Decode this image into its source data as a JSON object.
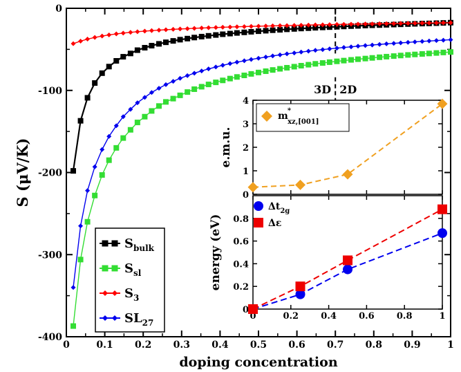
{
  "chart_data": [
    {
      "type": "line",
      "xlabel": "doping concentration",
      "ylabel": "S (μV/K)",
      "xlim": [
        0,
        1
      ],
      "ylim": [
        -400,
        0
      ],
      "xticks": [
        "0",
        "0.1",
        "0.2",
        "0.3",
        "0.4",
        "0.5",
        "0.6",
        "0.7",
        "0.8",
        "0.9",
        "1"
      ],
      "yticks": [
        "0",
        "-100",
        "-200",
        "-300",
        "-400"
      ],
      "grid": false,
      "legend_position": "bottom-left",
      "annotations": [
        {
          "text": "3D",
          "x": 0.7,
          "y": -100
        },
        {
          "text": "2D",
          "x": 0.7,
          "y": -100
        },
        {
          "type": "dashed-vertical-line",
          "x": 0.7
        }
      ],
      "series": [
        {
          "name": "S",
          "subscript": "bulk",
          "color": "#000000",
          "marker": "square",
          "x": [
            0.018,
            0.037,
            0.055,
            0.074,
            0.093,
            0.111,
            0.13,
            0.148,
            0.167,
            0.185,
            0.204,
            0.222,
            0.241,
            0.259,
            0.278,
            0.296,
            0.315,
            0.333,
            0.352,
            0.37,
            0.389,
            0.407,
            0.426,
            0.444,
            0.463,
            0.481,
            0.5,
            0.519,
            0.537,
            0.556,
            0.574,
            0.593,
            0.611,
            0.63,
            0.648,
            0.667,
            0.685,
            0.704,
            0.722,
            0.741,
            0.759,
            0.778,
            0.796,
            0.815,
            0.833,
            0.852,
            0.87,
            0.889,
            0.907,
            0.926,
            0.944,
            0.963,
            0.981,
            1.0
          ],
          "y": [
            -198,
            -137,
            -109,
            -91,
            -79,
            -71,
            -64,
            -59,
            -55,
            -51,
            -48,
            -45.5,
            -43.3,
            -41.4,
            -39.7,
            -38.2,
            -36.9,
            -35.6,
            -34.5,
            -33.5,
            -32.5,
            -31.6,
            -30.8,
            -30.0,
            -29.3,
            -28.6,
            -27.9,
            -27.3,
            -26.7,
            -26.2,
            -25.6,
            -25.1,
            -24.6,
            -24.2,
            -23.7,
            -23.3,
            -22.9,
            -22.5,
            -22.1,
            -21.7,
            -21.4,
            -21.0,
            -20.7,
            -20.4,
            -20.1,
            -19.8,
            -19.5,
            -19.2,
            -18.9,
            -18.6,
            -18.4,
            -18.1,
            -17.8,
            -17.5
          ]
        },
        {
          "name": "S",
          "subscript": "sl",
          "color": "#33dd33",
          "marker": "square",
          "x": [
            0.018,
            0.037,
            0.055,
            0.074,
            0.093,
            0.111,
            0.13,
            0.148,
            0.167,
            0.185,
            0.204,
            0.222,
            0.241,
            0.259,
            0.278,
            0.296,
            0.315,
            0.333,
            0.352,
            0.37,
            0.389,
            0.407,
            0.426,
            0.444,
            0.463,
            0.481,
            0.5,
            0.519,
            0.537,
            0.556,
            0.574,
            0.593,
            0.611,
            0.63,
            0.648,
            0.667,
            0.685,
            0.704,
            0.722,
            0.741,
            0.759,
            0.778,
            0.796,
            0.815,
            0.833,
            0.852,
            0.87,
            0.889,
            0.907,
            0.926,
            0.944,
            0.963,
            0.981,
            1.0
          ],
          "y": [
            -387,
            -306,
            -260,
            -228,
            -203,
            -185,
            -170,
            -158,
            -148,
            -139,
            -132,
            -125,
            -119,
            -114,
            -110,
            -106,
            -102,
            -98.5,
            -95.5,
            -92.7,
            -90.2,
            -87.8,
            -85.6,
            -83.6,
            -81.7,
            -79.9,
            -78.2,
            -76.6,
            -75.1,
            -73.7,
            -72.4,
            -71.1,
            -69.9,
            -68.7,
            -67.6,
            -66.6,
            -65.6,
            -64.6,
            -63.7,
            -62.8,
            -62.0,
            -61.2,
            -60.4,
            -59.6,
            -58.9,
            -58.2,
            -57.5,
            -56.8,
            -56.2,
            -55.6,
            -55.0,
            -54.4,
            -53.8,
            -53.2
          ]
        },
        {
          "name": "S",
          "subscript": "3",
          "color": "#ff0000",
          "marker": "diamond",
          "x": [
            0.018,
            0.037,
            0.055,
            0.074,
            0.093,
            0.111,
            0.13,
            0.148,
            0.167,
            0.185,
            0.204,
            0.222,
            0.241,
            0.259,
            0.278,
            0.296,
            0.315,
            0.333,
            0.352,
            0.37,
            0.389,
            0.407,
            0.426,
            0.444,
            0.463,
            0.481,
            0.5,
            0.519,
            0.537,
            0.556,
            0.574,
            0.593,
            0.611,
            0.63,
            0.648,
            0.667,
            0.685,
            0.704,
            0.722,
            0.741,
            0.759,
            0.778,
            0.796,
            0.815,
            0.833,
            0.852,
            0.87,
            0.889,
            0.907,
            0.926,
            0.944,
            0.963,
            0.981,
            1.0
          ],
          "y": [
            -43,
            -40,
            -37.5,
            -35.5,
            -33.8,
            -32.4,
            -31.2,
            -30.2,
            -29.3,
            -28.5,
            -27.8,
            -27.2,
            -26.6,
            -26.1,
            -25.6,
            -25.2,
            -24.8,
            -24.4,
            -24.0,
            -23.7,
            -23.4,
            -23.1,
            -22.8,
            -22.5,
            -22.3,
            -22.0,
            -21.8,
            -21.6,
            -21.4,
            -21.2,
            -21.0,
            -20.8,
            -20.6,
            -20.4,
            -20.2,
            -20.1,
            -19.9,
            -19.7,
            -19.6,
            -19.4,
            -19.3,
            -19.1,
            -19.0,
            -18.8,
            -18.7,
            -18.6,
            -18.4,
            -18.3,
            -18.2,
            -18.0,
            -17.9,
            -17.8,
            -17.7,
            -17.6
          ]
        },
        {
          "name": "SL",
          "subscript": "27",
          "color": "#0000ee",
          "marker": "diamond",
          "x": [
            0.018,
            0.037,
            0.055,
            0.074,
            0.093,
            0.111,
            0.13,
            0.148,
            0.167,
            0.185,
            0.204,
            0.222,
            0.241,
            0.259,
            0.278,
            0.296,
            0.315,
            0.333,
            0.352,
            0.37,
            0.389,
            0.407,
            0.426,
            0.444,
            0.463,
            0.481,
            0.5,
            0.519,
            0.537,
            0.556,
            0.574,
            0.593,
            0.611,
            0.63,
            0.648,
            0.667,
            0.685,
            0.704,
            0.722,
            0.741,
            0.759,
            0.778,
            0.796,
            0.815,
            0.833,
            0.852,
            0.87,
            0.889,
            0.907,
            0.926,
            0.944,
            0.963,
            0.981,
            1.0
          ],
          "y": [
            -340,
            -265,
            -222,
            -193,
            -172,
            -156,
            -143,
            -132,
            -123,
            -115,
            -108.5,
            -102.5,
            -97.4,
            -92.9,
            -88.9,
            -85.3,
            -82.0,
            -79.0,
            -76.3,
            -73.8,
            -71.5,
            -69.4,
            -67.4,
            -65.6,
            -63.9,
            -62.3,
            -60.8,
            -59.4,
            -58.0,
            -56.7,
            -55.5,
            -54.4,
            -53.3,
            -52.2,
            -51.2,
            -50.3,
            -49.4,
            -48.5,
            -47.7,
            -46.9,
            -46.1,
            -45.4,
            -44.7,
            -44.0,
            -43.3,
            -42.7,
            -42.1,
            -41.5,
            -40.9,
            -40.3,
            -39.8,
            -39.3,
            -38.8,
            -38.3
          ]
        }
      ]
    },
    {
      "type": "line",
      "panel": "inset-top",
      "xlabel": "",
      "ylabel": "e.m.u.",
      "xlim": [
        0,
        1
      ],
      "ylim": [
        0,
        4
      ],
      "yticks": [
        "0",
        "1",
        "2",
        "3",
        "4"
      ],
      "legend_position": "top-left",
      "series": [
        {
          "name": "m",
          "superscript": "*",
          "subscript": "xz,[001]",
          "color": "#f0a020",
          "marker": "diamond",
          "line": "dashed",
          "x": [
            0,
            0.25,
            0.5,
            1
          ],
          "y": [
            0.3,
            0.4,
            0.85,
            3.85
          ]
        }
      ]
    },
    {
      "type": "line",
      "panel": "inset-bottom",
      "xlabel": "",
      "ylabel": "energy (eV)",
      "xlim": [
        0,
        1
      ],
      "ylim": [
        0,
        1
      ],
      "xticks": [
        "0",
        "0.2",
        "0.4",
        "0.6",
        "0.8",
        "1"
      ],
      "yticks": [
        "0",
        "0.2",
        "0.4",
        "0.6",
        "0.8"
      ],
      "legend_position": "top-left",
      "series": [
        {
          "name": "Δt",
          "subscript": "2g",
          "color": "#0000ee",
          "marker": "circle",
          "line": "dashed",
          "x": [
            0,
            0.25,
            0.5,
            1
          ],
          "y": [
            0.0,
            0.13,
            0.35,
            0.67
          ]
        },
        {
          "name": "Δε",
          "color": "#ee0000",
          "marker": "square",
          "line": "dashed",
          "x": [
            0,
            0.25,
            0.5,
            1
          ],
          "y": [
            0.0,
            0.2,
            0.43,
            0.88
          ]
        }
      ]
    }
  ]
}
